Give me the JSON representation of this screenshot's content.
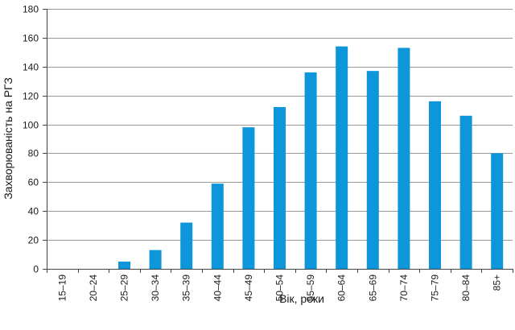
{
  "chart_data": {
    "type": "bar",
    "title": "",
    "xlabel": "Вік, роки",
    "ylabel": "Захворюваність на РГЗ",
    "ylim": [
      0,
      180
    ],
    "yticks": [
      0,
      20,
      40,
      60,
      80,
      100,
      120,
      140,
      160,
      180
    ],
    "grid": "horizontal",
    "bar_color": "#0d96d9",
    "categories": [
      "15–19",
      "20–24",
      "25–29",
      "30–34",
      "35–39",
      "40–44",
      "45–49",
      "50–54",
      "55–59",
      "60–64",
      "65–69",
      "70–74",
      "75–79",
      "80–84",
      "85+"
    ],
    "values": [
      0,
      0,
      5,
      13,
      32,
      59,
      98,
      112,
      136,
      154,
      137,
      153,
      116,
      106,
      80
    ]
  }
}
